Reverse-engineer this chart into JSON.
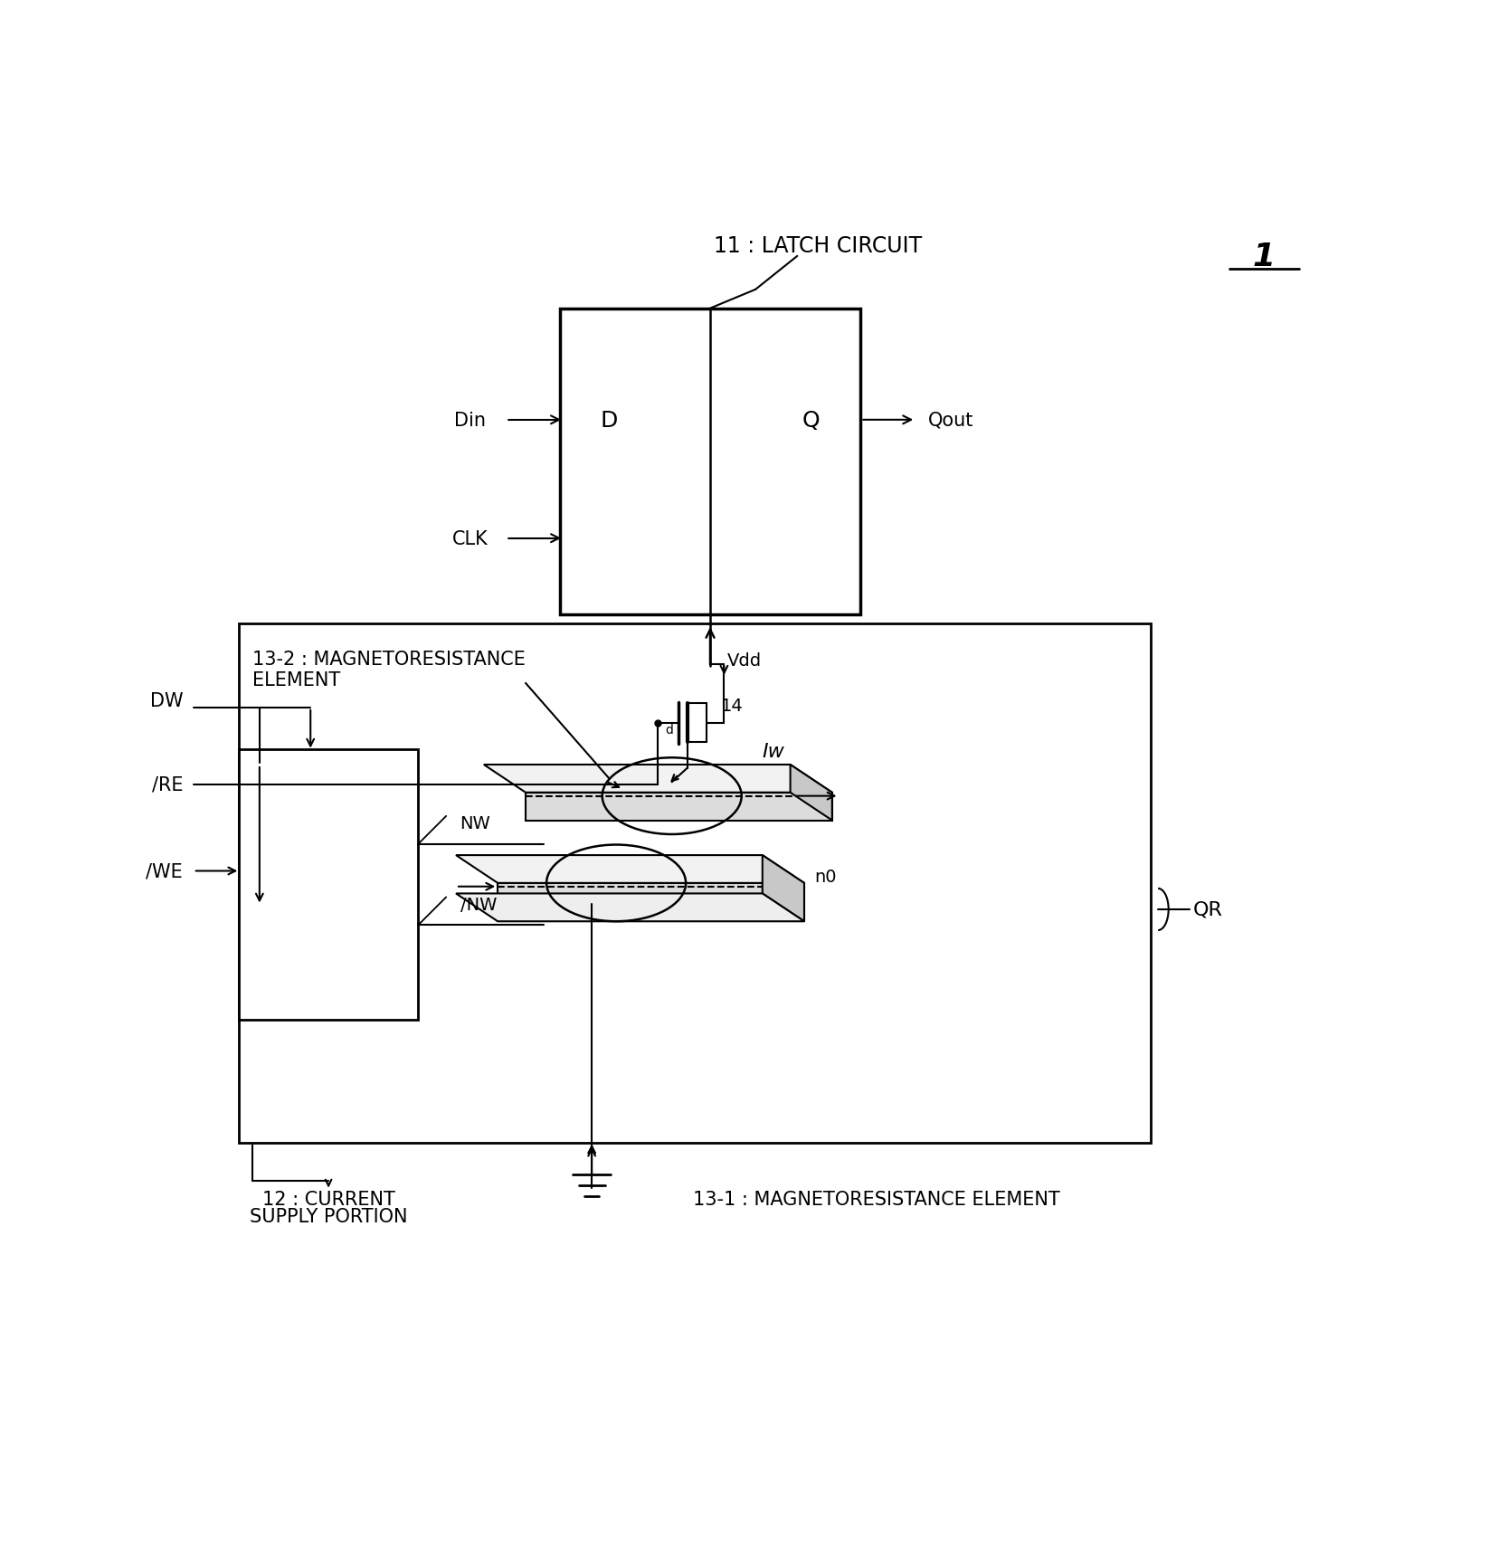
{
  "fig_width": 16.58,
  "fig_height": 17.24,
  "bg_color": "#ffffff",
  "lc": "#000000",
  "title_11": "11 : LATCH CIRCUIT",
  "label_1": "1",
  "label_D": "D",
  "label_Q": "Q",
  "label_Din": "Din",
  "label_Qout": "Qout",
  "label_CLK": "CLK",
  "label_DW": "DW",
  "label_RE": "/RE",
  "label_WE": "/WE",
  "label_NW": "NW",
  "label_NW2": "/NW",
  "label_Vdd": "Vdd",
  "label_QR": "QR",
  "label_14": "14",
  "label_Iw": "Iw",
  "label_n0": "n0",
  "label_13_2_line1": "13-2 : MAGNETORESISTANCE",
  "label_13_2_line2": "ELEMENT",
  "label_13_1": "13-1 : MAGNETORESISTANCE ELEMENT",
  "label_12_line1": "12 : CURRENT",
  "label_12_line2": "SUPPLY PORTION"
}
